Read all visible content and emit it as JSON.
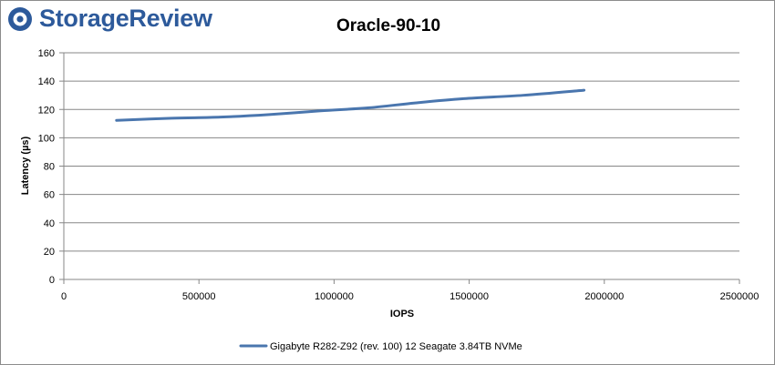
{
  "brand": {
    "logo_text": "StorageReview",
    "logo_color": "#2d5a9b"
  },
  "chart_data": {
    "type": "line",
    "title": "Oracle-90-10",
    "xlabel": "IOPS",
    "ylabel": "Latency (µs)",
    "xlim": [
      0,
      2500000
    ],
    "ylim": [
      0,
      160
    ],
    "xticks": [
      0,
      500000,
      1000000,
      1500000,
      2000000,
      2500000
    ],
    "yticks": [
      0,
      20,
      40,
      60,
      80,
      100,
      120,
      140,
      160
    ],
    "grid": true,
    "legend_position": "bottom",
    "series": [
      {
        "name": "Gigabyte R282-Z92 (rev. 100) 12 Seagate 3.84TB NVMe",
        "color": "#4a76ae",
        "points": [
          [
            195000,
            112.3
          ],
          [
            400000,
            113.8
          ],
          [
            580000,
            114.6
          ],
          [
            760000,
            116.4
          ],
          [
            950000,
            119.0
          ],
          [
            1130000,
            121.2
          ],
          [
            1300000,
            124.6
          ],
          [
            1480000,
            127.6
          ],
          [
            1700000,
            130.0
          ],
          [
            1925000,
            133.6
          ]
        ]
      }
    ]
  }
}
